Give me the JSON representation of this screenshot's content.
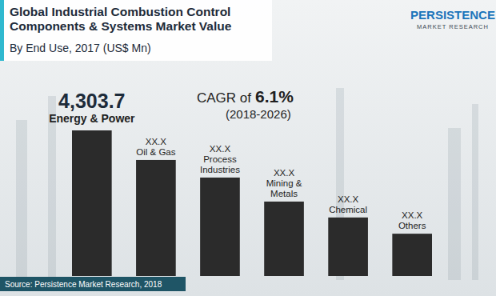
{
  "chart_data": {
    "type": "bar",
    "title": "Global Industrial Combustion Control Components & Systems Market Value",
    "subtitle": "By End Use, 2017 (US$ Mn)",
    "categories": [
      "Energy & Power",
      "Oil & Gas",
      "Process Industries",
      "Mining & Metals",
      "Chemical",
      "Others"
    ],
    "values": [
      4303.7,
      3430,
      2910,
      2200,
      1730,
      1250
    ],
    "value_labels": [
      "4,303.7",
      "XX.X",
      "XX.X",
      "XX.X",
      "XX.X",
      "XX.X"
    ],
    "data_labels": true,
    "tick_labels": false,
    "color": "#2b2b2b",
    "annotations": [
      "CAGR of",
      "6.1%",
      "(2018-2026)"
    ],
    "source": "Source: Persistence Market Research, 2018",
    "logo": [
      "PERSISTENCE",
      "MARKET RESEARCH"
    ]
  }
}
